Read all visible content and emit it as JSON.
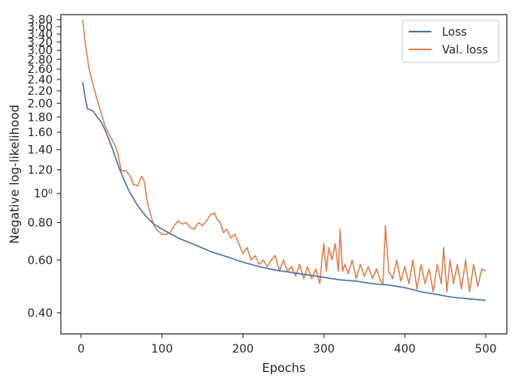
{
  "chart_data": {
    "type": "line",
    "xlabel": "Epochs",
    "ylabel": "Negative log-likelihood",
    "y_scale": "log",
    "grid": false,
    "legend_position": "top-right",
    "xlim": [
      -25,
      526
    ],
    "ylim": [
      0.34,
      3.95
    ],
    "x_ticks": [
      {
        "value": 0,
        "label": "0"
      },
      {
        "value": 100,
        "label": "100"
      },
      {
        "value": 200,
        "label": "200"
      },
      {
        "value": 300,
        "label": "300"
      },
      {
        "value": 400,
        "label": "400"
      },
      {
        "value": 500,
        "label": "500"
      }
    ],
    "y_ticks": [
      {
        "value": 0.4,
        "label": "0.40"
      },
      {
        "value": 0.6,
        "label": "0.60"
      },
      {
        "value": 0.8,
        "label": "0.80"
      },
      {
        "value": 1.0,
        "label": "10⁰"
      },
      {
        "value": 1.2,
        "label": "1.20"
      },
      {
        "value": 1.4,
        "label": "1.40"
      },
      {
        "value": 1.6,
        "label": "1.60"
      },
      {
        "value": 1.8,
        "label": "1.80"
      },
      {
        "value": 2.0,
        "label": "2.00"
      },
      {
        "value": 2.2,
        "label": "2.20"
      },
      {
        "value": 2.4,
        "label": "2.40"
      },
      {
        "value": 2.6,
        "label": "2.60"
      },
      {
        "value": 2.8,
        "label": "2.80"
      },
      {
        "value": 3.0,
        "label": "3.00"
      },
      {
        "value": 3.2,
        "label": "3.20"
      },
      {
        "value": 3.4,
        "label": "3.40"
      },
      {
        "value": 3.6,
        "label": "3.60"
      },
      {
        "value": 3.8,
        "label": "3.80"
      }
    ],
    "series": [
      {
        "name": "Loss",
        "color": "#4c72b0",
        "x": [
          2,
          5,
          8,
          12,
          15,
          20,
          25,
          30,
          35,
          40,
          45,
          50,
          55,
          60,
          70,
          80,
          90,
          100,
          110,
          120,
          140,
          160,
          180,
          200,
          220,
          240,
          260,
          280,
          300,
          320,
          340,
          360,
          380,
          400,
          420,
          440,
          460,
          480,
          500
        ],
        "y": [
          2.35,
          2.1,
          1.91,
          1.9,
          1.88,
          1.8,
          1.73,
          1.62,
          1.5,
          1.38,
          1.26,
          1.16,
          1.08,
          1.01,
          0.91,
          0.84,
          0.79,
          0.76,
          0.735,
          0.71,
          0.675,
          0.64,
          0.615,
          0.59,
          0.57,
          0.555,
          0.545,
          0.535,
          0.525,
          0.515,
          0.51,
          0.5,
          0.495,
          0.485,
          0.47,
          0.46,
          0.45,
          0.445,
          0.44
        ]
      },
      {
        "name": "Val. loss",
        "color": "#dd8452",
        "x": [
          2,
          5,
          10,
          15,
          20,
          25,
          30,
          35,
          40,
          45,
          48,
          50,
          55,
          60,
          65,
          70,
          75,
          78,
          82,
          86,
          90,
          95,
          100,
          105,
          110,
          115,
          120,
          125,
          130,
          135,
          140,
          145,
          150,
          155,
          160,
          165,
          168,
          172,
          176,
          180,
          185,
          190,
          195,
          200,
          205,
          210,
          215,
          220,
          225,
          230,
          235,
          240,
          245,
          250,
          255,
          260,
          265,
          270,
          275,
          280,
          285,
          290,
          295,
          298,
          300,
          303,
          306,
          310,
          314,
          318,
          320,
          323,
          326,
          330,
          335,
          340,
          345,
          350,
          355,
          360,
          365,
          370,
          373,
          376,
          380,
          385,
          390,
          395,
          400,
          405,
          410,
          415,
          420,
          425,
          430,
          435,
          440,
          445,
          448,
          452,
          456,
          460,
          465,
          470,
          475,
          480,
          485,
          490,
          495,
          500
        ],
        "y": [
          3.8,
          3.2,
          2.6,
          2.3,
          2.05,
          1.85,
          1.67,
          1.57,
          1.48,
          1.38,
          1.25,
          1.19,
          1.19,
          1.15,
          1.07,
          1.06,
          1.14,
          1.1,
          0.93,
          0.85,
          0.78,
          0.75,
          0.73,
          0.73,
          0.74,
          0.78,
          0.81,
          0.79,
          0.8,
          0.77,
          0.76,
          0.8,
          0.78,
          0.81,
          0.85,
          0.86,
          0.82,
          0.8,
          0.74,
          0.76,
          0.71,
          0.73,
          0.68,
          0.63,
          0.66,
          0.6,
          0.62,
          0.58,
          0.6,
          0.57,
          0.6,
          0.62,
          0.55,
          0.6,
          0.55,
          0.57,
          0.53,
          0.58,
          0.52,
          0.57,
          0.52,
          0.56,
          0.5,
          0.62,
          0.68,
          0.55,
          0.66,
          0.6,
          0.68,
          0.55,
          0.76,
          0.55,
          0.58,
          0.54,
          0.6,
          0.52,
          0.58,
          0.53,
          0.57,
          0.52,
          0.56,
          0.51,
          0.5,
          0.78,
          0.55,
          0.52,
          0.6,
          0.51,
          0.57,
          0.5,
          0.6,
          0.48,
          0.58,
          0.5,
          0.56,
          0.47,
          0.58,
          0.5,
          0.66,
          0.47,
          0.6,
          0.5,
          0.58,
          0.48,
          0.6,
          0.47,
          0.58,
          0.49,
          0.56,
          0.55
        ]
      }
    ]
  }
}
